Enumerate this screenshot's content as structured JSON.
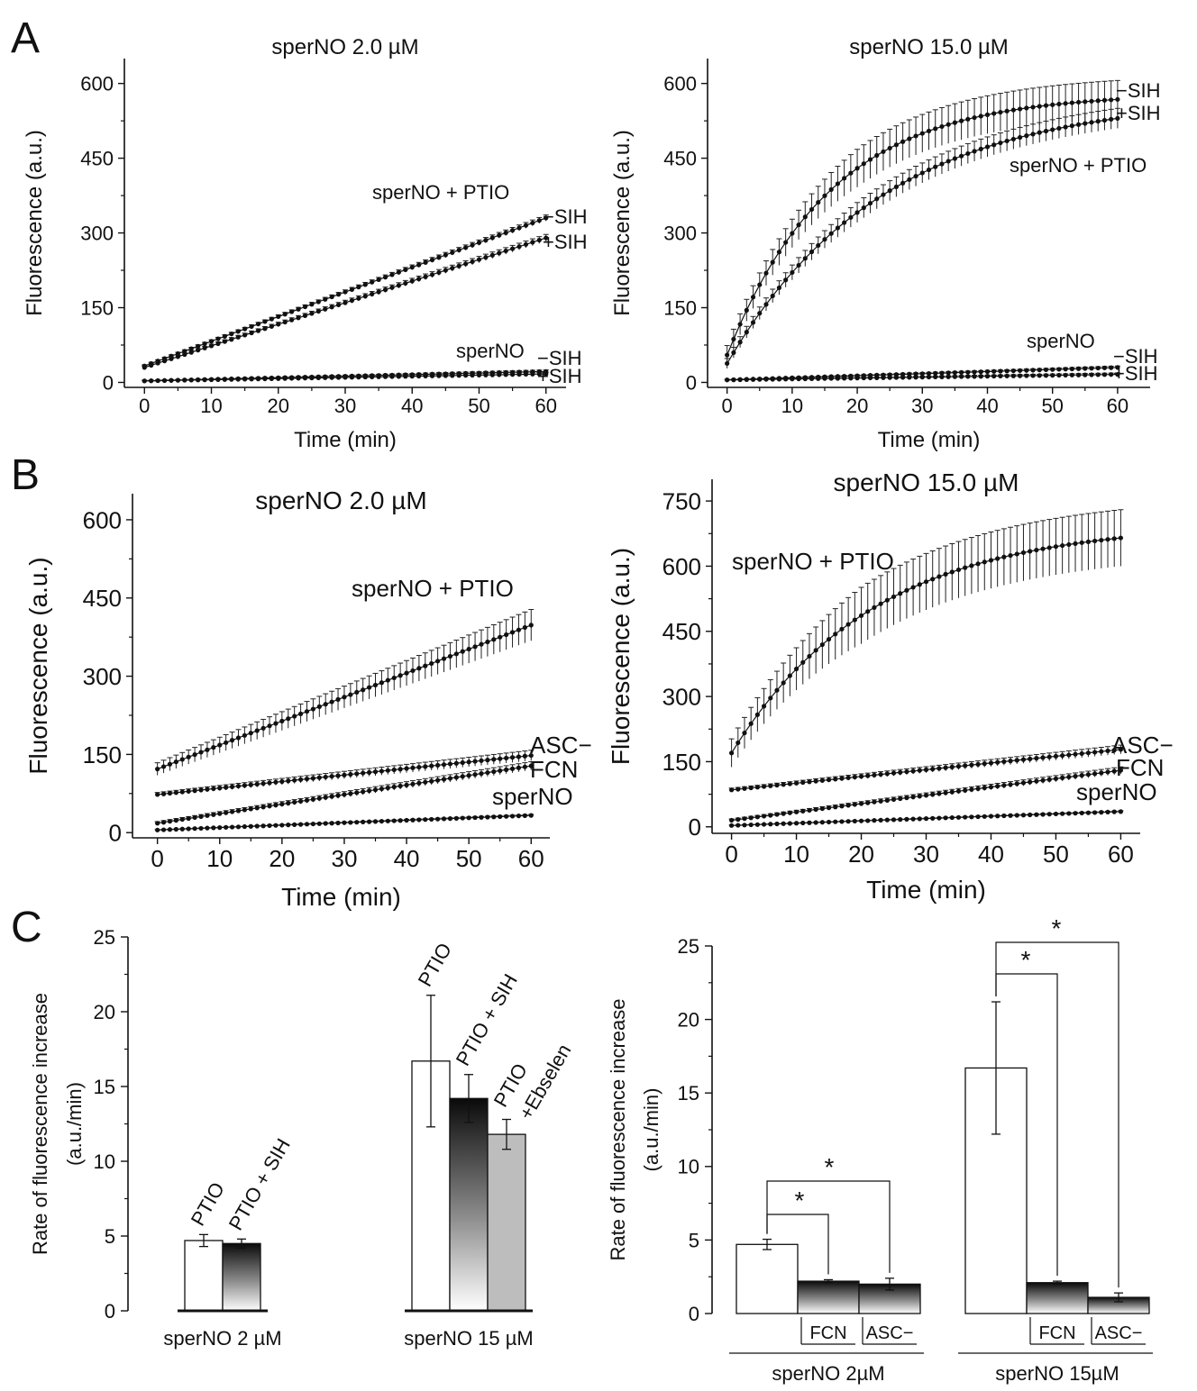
{
  "panel_letters": [
    "A",
    "B",
    "C"
  ],
  "chart_data": [
    {
      "id": "A1",
      "type": "scatter",
      "title": "sperNO 2.0 µM",
      "xlabel": "Time (min)",
      "ylabel": "Fluorescence (a.u.)",
      "xlim": [
        -3,
        63
      ],
      "ylim": [
        -10,
        650
      ],
      "xticks": [
        0,
        10,
        20,
        30,
        40,
        50,
        60
      ],
      "yticks": [
        0,
        150,
        300,
        450,
        600
      ],
      "series": [
        {
          "name": "sperNO + PTIO −SIH",
          "curve": "linear",
          "n": 60,
          "y0": 33,
          "y1": 330,
          "err": 6
        },
        {
          "name": "sperNO + PTIO +SIH",
          "curve": "linear",
          "n": 60,
          "y0": 30,
          "y1": 290,
          "err": 7
        },
        {
          "name": "sperNO −SIH",
          "curve": "linear",
          "n": 60,
          "y0": 3,
          "y1": 22,
          "err": 3
        },
        {
          "name": "sperNO +SIH",
          "curve": "linear",
          "n": 60,
          "y0": 3,
          "y1": 17,
          "err": 3
        }
      ],
      "annotations": [
        "sperNO + PTIO",
        "−SIH",
        "+SIH",
        "sperNO",
        "−SIH",
        "+SIH"
      ]
    },
    {
      "id": "A2",
      "type": "scatter",
      "title": "sperNO 15.0 µM",
      "xlabel": "Time (min)",
      "ylabel": "Fluorescence (a.u.)",
      "xlim": [
        -3,
        65
      ],
      "ylim": [
        -10,
        650
      ],
      "xticks": [
        0,
        10,
        20,
        30,
        40,
        50,
        60
      ],
      "yticks": [
        0,
        150,
        300,
        450,
        600
      ],
      "series": [
        {
          "name": "sperNO + PTIO −SIH",
          "curve": "sat",
          "n": 60,
          "y0": 55,
          "y1": 568,
          "tau": 16,
          "err": 38
        },
        {
          "name": "sperNO + PTIO +SIH",
          "curve": "sat",
          "n": 60,
          "y0": 38,
          "y1": 530,
          "tau": 24,
          "err": 20
        },
        {
          "name": "sperNO −SIH",
          "curve": "linear",
          "n": 60,
          "y0": 5,
          "y1": 30,
          "err": 3
        },
        {
          "name": "sperNO +SIH",
          "curve": "linear",
          "n": 60,
          "y0": 5,
          "y1": 16,
          "err": 3
        }
      ],
      "annotations": [
        "−SIH",
        "+SIH",
        "sperNO + PTIO",
        "sperNO",
        "−SIH",
        "+SIH"
      ]
    },
    {
      "id": "B1",
      "type": "scatter",
      "title": "sperNO 2.0 µM",
      "xlabel": "Time (min)",
      "ylabel": "Fluorescence (a.u.)",
      "xlim": [
        -4,
        63
      ],
      "ylim": [
        -10,
        650
      ],
      "xticks": [
        0,
        10,
        20,
        30,
        40,
        50,
        60
      ],
      "yticks": [
        0,
        150,
        300,
        450,
        600
      ],
      "series": [
        {
          "name": "sperNO + PTIO",
          "curve": "linear",
          "n": 60,
          "y0": 122,
          "y1": 398,
          "err": 30
        },
        {
          "name": "ASC−",
          "curve": "linear",
          "n": 60,
          "y0": 73,
          "y1": 148,
          "err": 10
        },
        {
          "name": "FCN",
          "curve": "linear",
          "n": 60,
          "y0": 18,
          "y1": 128,
          "err": 8
        },
        {
          "name": "sperNO",
          "curve": "linear",
          "n": 60,
          "y0": 5,
          "y1": 33,
          "err": 2
        }
      ],
      "annotations": [
        "sperNO + PTIO",
        "ASC−",
        "FCN",
        "sperNO"
      ]
    },
    {
      "id": "B2",
      "type": "scatter",
      "title": "sperNO 15.0 µM",
      "xlabel": "Time (min)",
      "ylabel": "Fluorescence (a.u.)",
      "xlim": [
        -3,
        63
      ],
      "ylim": [
        -15,
        800
      ],
      "xticks": [
        0,
        10,
        20,
        30,
        40,
        50,
        60
      ],
      "yticks": [
        0,
        150,
        300,
        450,
        600,
        750
      ],
      "series": [
        {
          "name": "sperNO + PTIO",
          "curve": "sat",
          "n": 60,
          "y0": 170,
          "y1": 665,
          "tau": 22,
          "err": 65
        },
        {
          "name": "ASC−",
          "curve": "linear",
          "n": 60,
          "y0": 85,
          "y1": 178,
          "err": 10
        },
        {
          "name": "FCN",
          "curve": "linear",
          "n": 60,
          "y0": 15,
          "y1": 130,
          "err": 8
        },
        {
          "name": "sperNO",
          "curve": "linear",
          "n": 60,
          "y0": 3,
          "y1": 35,
          "err": 2
        }
      ],
      "annotations": [
        "sperNO + PTIO",
        "ASC−",
        "FCN",
        "sperNO"
      ]
    },
    {
      "id": "C1",
      "type": "bar",
      "ylabel": "Rate of fluorescence increase (a.u./min)",
      "ylabel_lines": [
        "Rate of fluorescence increase",
        "(a.u./min)"
      ],
      "ylim": [
        0,
        25
      ],
      "yticks": [
        0,
        5,
        10,
        15,
        20,
        25
      ],
      "groups": [
        {
          "label": "sperNO 2 µM",
          "bars": [
            {
              "label": "PTIO",
              "value": 4.7,
              "err": 0.4,
              "fill": "white"
            },
            {
              "label": "PTIO + SIH",
              "value": 4.5,
              "err": 0.3,
              "fill": "dark-gradient"
            }
          ]
        },
        {
          "label": "sperNO 15 µM",
          "bars": [
            {
              "label": "PTIO",
              "value": 16.7,
              "err": 4.4,
              "fill": "white"
            },
            {
              "label": "PTIO + SIH",
              "value": 14.2,
              "err": 1.6,
              "fill": "dark-gradient"
            },
            {
              "label": "PTIO +Ebselen",
              "value": 11.8,
              "err": 1.0,
              "fill": "gray"
            }
          ]
        }
      ]
    },
    {
      "id": "C2",
      "type": "bar",
      "ylabel": "Rate of fluorescence increase (a.u./min)",
      "ylabel_lines": [
        "Rate of fluorescence increase",
        "(a.u./min)"
      ],
      "ylim": [
        0,
        25
      ],
      "yticks": [
        0,
        5,
        10,
        15,
        20,
        25
      ],
      "groups": [
        {
          "label": "sperNO 2µM",
          "bars": [
            {
              "label": "",
              "value": 4.7,
              "err": 0.35,
              "fill": "white"
            },
            {
              "label": "FCN",
              "value": 2.2,
              "err": 0.1,
              "fill": "dark-gradient"
            },
            {
              "label": "ASC−",
              "value": 2.0,
              "err": 0.4,
              "fill": "dark-gradient"
            }
          ]
        },
        {
          "label": "sperNO 15µM",
          "bars": [
            {
              "label": "",
              "value": 16.7,
              "err": 4.5,
              "fill": "white"
            },
            {
              "label": "FCN",
              "value": 2.1,
              "err": 0.1,
              "fill": "dark-gradient"
            },
            {
              "label": "ASC−",
              "value": 1.1,
              "err": 0.3,
              "fill": "dark-gradient"
            }
          ]
        }
      ],
      "significance": "*"
    }
  ]
}
